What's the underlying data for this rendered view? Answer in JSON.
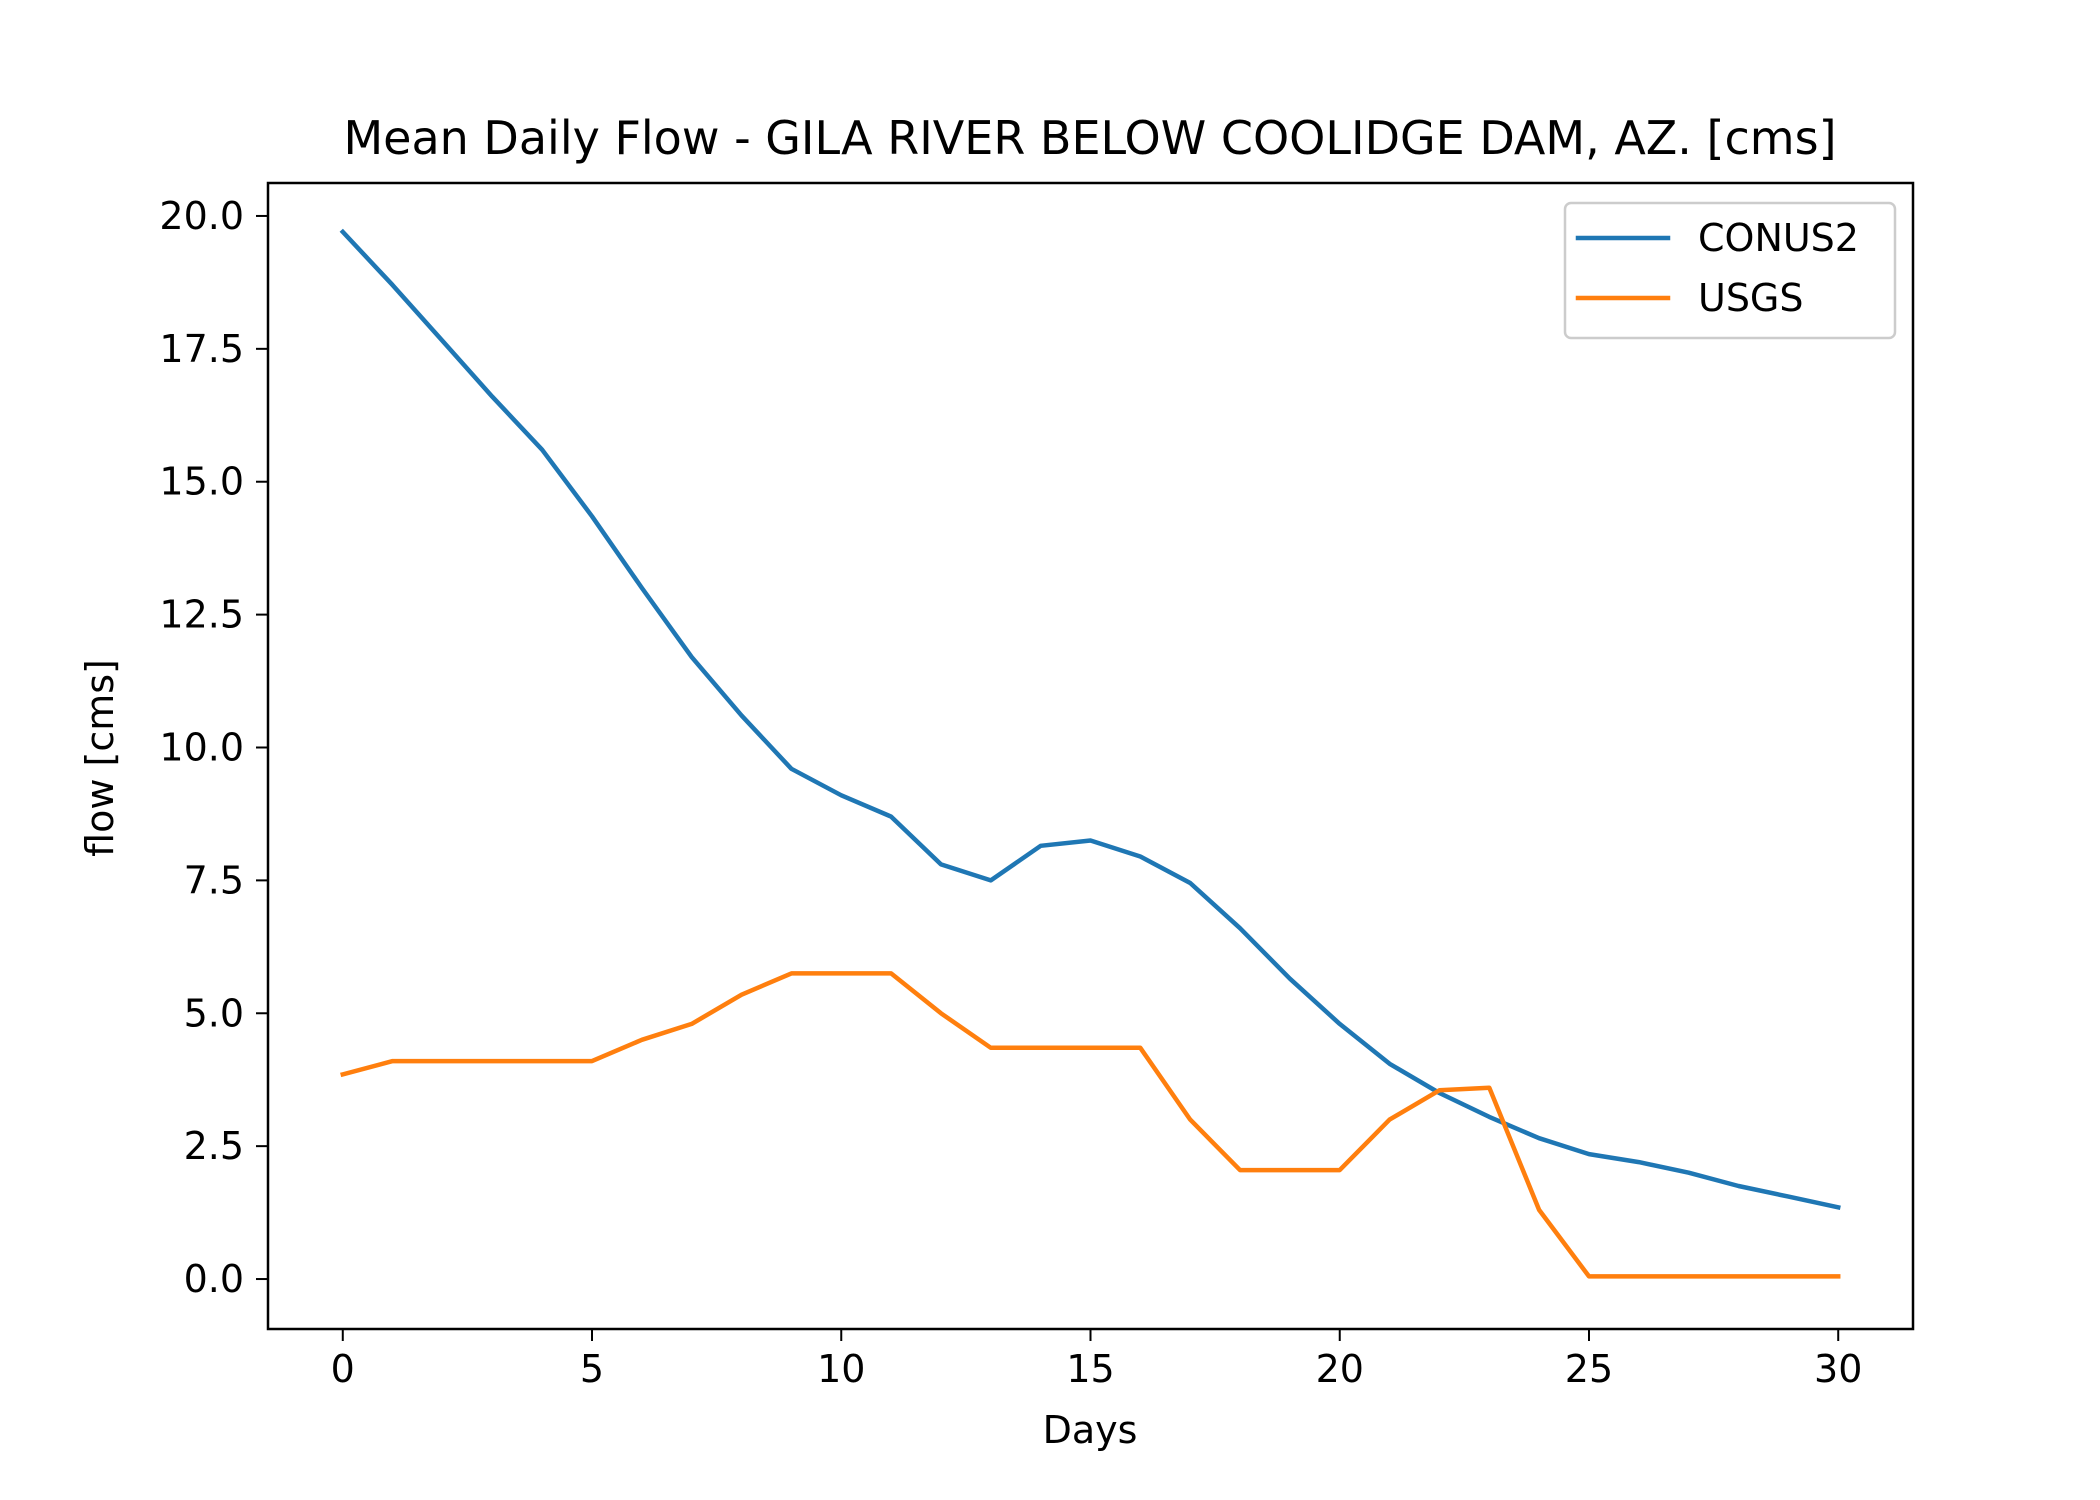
{
  "chart_data": {
    "type": "line",
    "title": "Mean Daily Flow - GILA RIVER BELOW COOLIDGE DAM, AZ. [cms]",
    "xlabel": "Days",
    "ylabel": "flow [cms]",
    "xlim": [
      -1.5,
      31.5
    ],
    "ylim": [
      -0.94,
      20.62
    ],
    "xticks": [
      0,
      5,
      10,
      15,
      20,
      25,
      30
    ],
    "xtick_labels": [
      "0",
      "5",
      "10",
      "15",
      "20",
      "25",
      "30"
    ],
    "yticks": [
      0,
      2.5,
      5,
      7.5,
      10,
      12.5,
      15,
      17.5,
      20
    ],
    "ytick_labels": [
      "0.0",
      "2.5",
      "5.0",
      "7.5",
      "10.0",
      "12.5",
      "15.0",
      "17.5",
      "20.0"
    ],
    "grid": false,
    "legend_position": "top-right",
    "x": [
      0,
      1,
      2,
      3,
      4,
      5,
      6,
      7,
      8,
      9,
      10,
      11,
      12,
      13,
      14,
      15,
      16,
      17,
      18,
      19,
      20,
      21,
      22,
      23,
      24,
      25,
      26,
      27,
      28,
      29,
      30
    ],
    "series": [
      {
        "name": "CONUS2",
        "color": "#1f77b4",
        "values": [
          19.7,
          18.7,
          17.65,
          16.6,
          15.6,
          14.35,
          13.0,
          11.7,
          10.6,
          9.6,
          9.1,
          8.7,
          7.8,
          7.5,
          8.15,
          8.25,
          7.95,
          7.45,
          6.6,
          5.65,
          4.8,
          4.05,
          3.5,
          3.05,
          2.65,
          2.35,
          2.2,
          2.0,
          1.75,
          1.55,
          1.35
        ]
      },
      {
        "name": "USGS",
        "color": "#ff7f0e",
        "values": [
          3.85,
          4.1,
          4.1,
          4.1,
          4.1,
          4.1,
          4.5,
          4.8,
          5.35,
          5.75,
          5.75,
          5.75,
          5.0,
          4.35,
          4.35,
          4.35,
          4.35,
          3.0,
          2.05,
          2.05,
          2.05,
          3.0,
          3.55,
          3.6,
          1.3,
          0.05,
          0.05,
          0.05,
          0.05,
          0.05,
          0.05
        ]
      }
    ]
  }
}
